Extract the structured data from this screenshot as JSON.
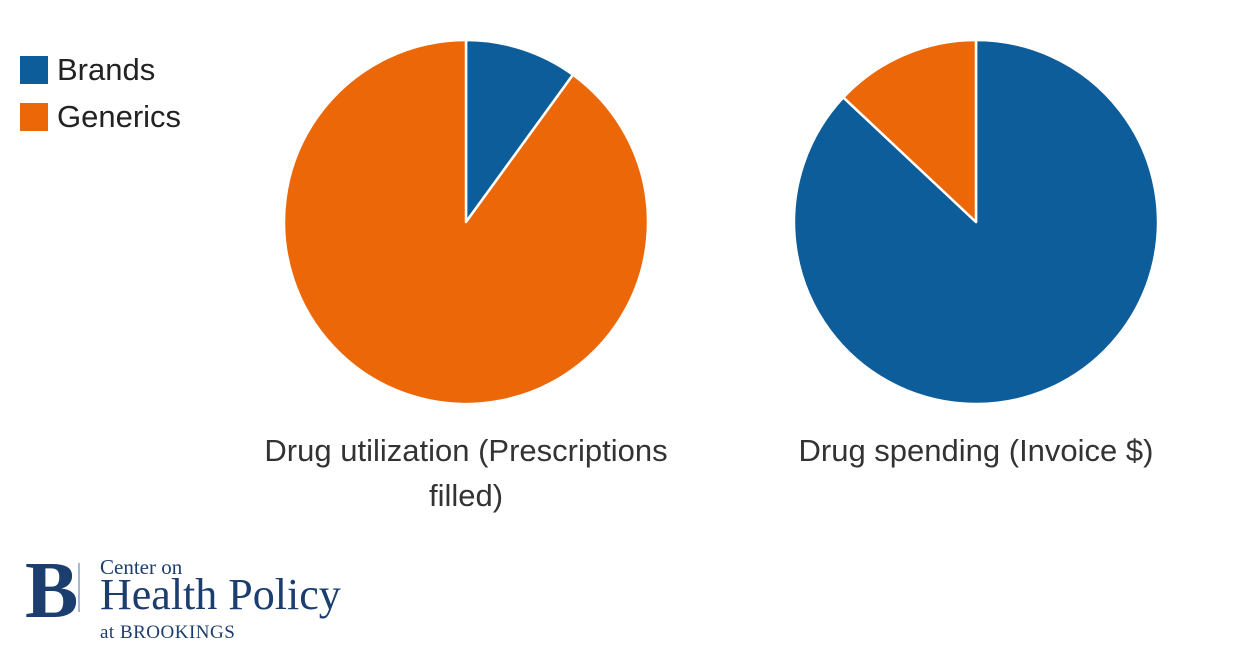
{
  "background_color": "#ffffff",
  "accent_colors": {
    "brands_blue": "#0c5d9a",
    "generics_orange": "#ec6708",
    "logo_navy": "#1c3e6e",
    "logo_divider": "#a7b9d1"
  },
  "legend": {
    "position": "top-left",
    "items": [
      {
        "label": "Brands",
        "color": "#0c5d9a"
      },
      {
        "label": "Generics",
        "color": "#ec6708"
      }
    ]
  },
  "chart_data": [
    {
      "type": "pie",
      "title": "Drug utilization (Prescriptions filled)",
      "title_lines": [
        "Drug utilization (Prescriptions",
        "filled)"
      ],
      "labels": [
        "Brands",
        "Generics"
      ],
      "values": [
        10,
        90
      ],
      "unit": "percent",
      "colors": [
        "#0c5d9a",
        "#ec6708"
      ],
      "start_angle_deg": 0,
      "direction": "clockwise",
      "slice_separator": "white"
    },
    {
      "type": "pie",
      "title": "Drug spending (Invoice $)",
      "title_lines": [
        "Drug spending (Invoice $)"
      ],
      "labels": [
        "Brands",
        "Generics"
      ],
      "values": [
        87,
        13
      ],
      "unit": "percent",
      "colors": [
        "#0c5d9a",
        "#ec6708"
      ],
      "start_angle_deg": 0,
      "direction": "clockwise",
      "slice_separator": "white"
    }
  ],
  "logo": {
    "monogram": "B",
    "line1": "Center on",
    "line2": "Health Policy",
    "line3": "at BROOKINGS"
  }
}
